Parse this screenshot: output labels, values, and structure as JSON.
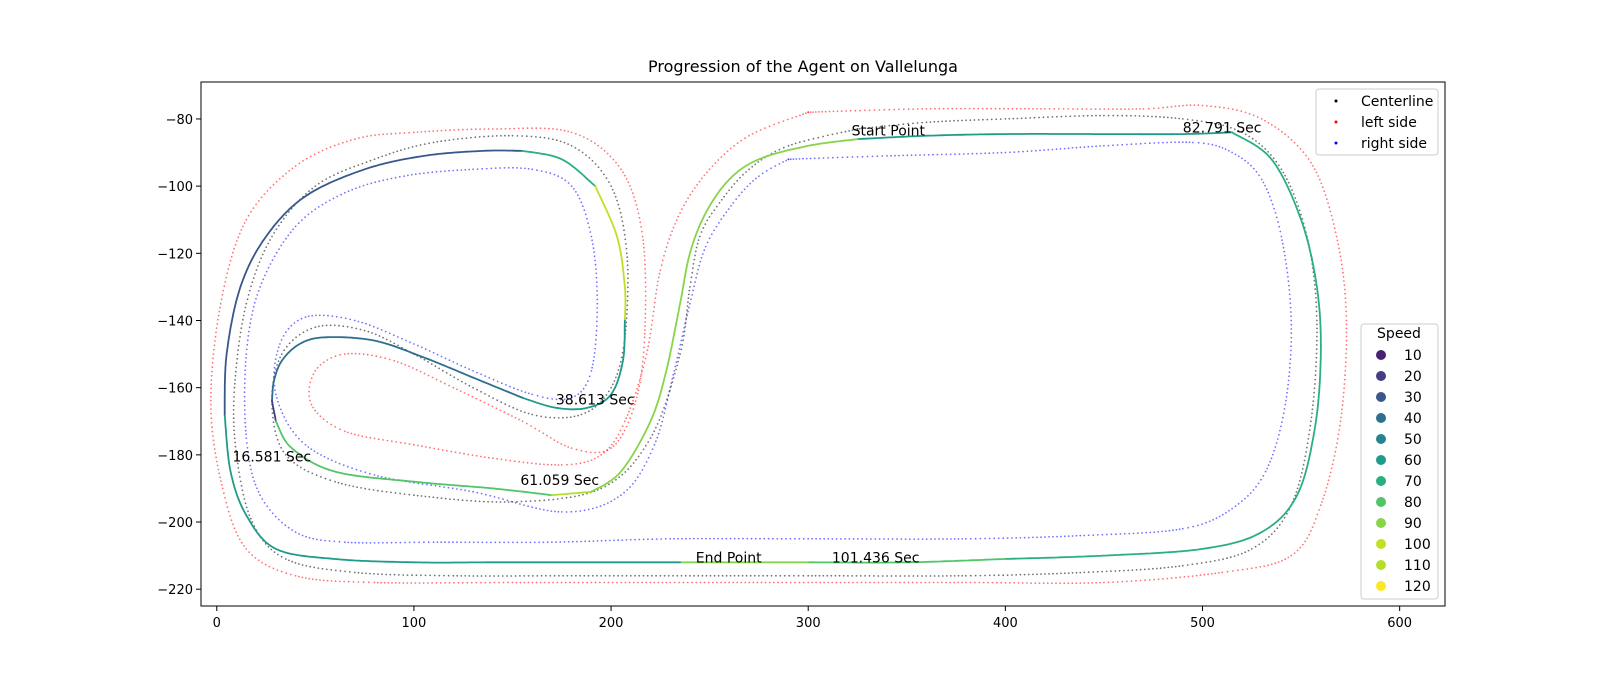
{
  "chart_data": {
    "type": "scatter",
    "title": "Progression of the Agent on Vallelunga",
    "xlabel": "",
    "ylabel": "",
    "xlim": [
      -8,
      623
    ],
    "ylim": [
      -225,
      -69
    ],
    "x_ticks": [
      0,
      100,
      200,
      300,
      400,
      500,
      600
    ],
    "y_ticks": [
      -80,
      -100,
      -120,
      -140,
      -160,
      -180,
      -200,
      -220
    ],
    "grid": false,
    "legend_position": "upper right",
    "legend": [
      {
        "label": "Centerline",
        "color": "#000000"
      },
      {
        "label": "left side",
        "color": "#ff0000"
      },
      {
        "label": "right side",
        "color": "#0000ff"
      }
    ],
    "speed_legend": {
      "title": "Speed",
      "position": "lower right",
      "entries": [
        {
          "label": "10",
          "color": "#482173"
        },
        {
          "label": "20",
          "color": "#433e85"
        },
        {
          "label": "30",
          "color": "#38588c"
        },
        {
          "label": "40",
          "color": "#2d708e"
        },
        {
          "label": "50",
          "color": "#25858e"
        },
        {
          "label": "60",
          "color": "#1e9b8a"
        },
        {
          "label": "70",
          "color": "#2ab07f"
        },
        {
          "label": "80",
          "color": "#52c569"
        },
        {
          "label": "90",
          "color": "#86d549"
        },
        {
          "label": "100",
          "color": "#c2df23"
        },
        {
          "label": "110",
          "color": "#b5de2b"
        },
        {
          "label": "120",
          "color": "#fde725"
        }
      ]
    },
    "series": [
      {
        "name": "Centerline",
        "color": "#000000",
        "points": [
          [
            325,
            -83
          ],
          [
            360,
            -81
          ],
          [
            400,
            -80
          ],
          [
            450,
            -79
          ],
          [
            490,
            -80
          ],
          [
            520,
            -84
          ],
          [
            540,
            -95
          ],
          [
            553,
            -115
          ],
          [
            558,
            -140
          ],
          [
            555,
            -170
          ],
          [
            545,
            -195
          ],
          [
            525,
            -208
          ],
          [
            490,
            -213
          ],
          [
            440,
            -215
          ],
          [
            380,
            -216
          ],
          [
            300,
            -216
          ],
          [
            240,
            -216
          ],
          [
            180,
            -216
          ],
          [
            120,
            -216
          ],
          [
            70,
            -215
          ],
          [
            35,
            -211
          ],
          [
            18,
            -200
          ],
          [
            10,
            -180
          ],
          [
            9,
            -160
          ],
          [
            15,
            -135
          ],
          [
            28,
            -115
          ],
          [
            50,
            -100
          ],
          [
            80,
            -92
          ],
          [
            110,
            -87
          ],
          [
            150,
            -85
          ],
          [
            180,
            -88
          ],
          [
            200,
            -100
          ],
          [
            208,
            -120
          ],
          [
            207,
            -145
          ],
          [
            200,
            -160
          ],
          [
            185,
            -168
          ],
          [
            160,
            -168
          ],
          [
            130,
            -160
          ],
          [
            100,
            -150
          ],
          [
            75,
            -143
          ],
          [
            50,
            -142
          ],
          [
            33,
            -150
          ],
          [
            28,
            -165
          ],
          [
            35,
            -180
          ],
          [
            60,
            -188
          ],
          [
            100,
            -192
          ],
          [
            150,
            -194
          ],
          [
            195,
            -190
          ],
          [
            220,
            -175
          ],
          [
            235,
            -150
          ],
          [
            240,
            -130
          ],
          [
            245,
            -115
          ],
          [
            255,
            -105
          ],
          [
            270,
            -95
          ],
          [
            290,
            -88
          ],
          [
            325,
            -83
          ]
        ]
      },
      {
        "name": "left side",
        "color": "#ff0000",
        "points": [
          [
            300,
            -78
          ],
          [
            360,
            -77
          ],
          [
            420,
            -77
          ],
          [
            470,
            -77
          ],
          [
            500,
            -76
          ],
          [
            530,
            -80
          ],
          [
            555,
            -93
          ],
          [
            568,
            -115
          ],
          [
            573,
            -140
          ],
          [
            570,
            -170
          ],
          [
            560,
            -195
          ],
          [
            545,
            -210
          ],
          [
            510,
            -215
          ],
          [
            450,
            -218
          ],
          [
            380,
            -218
          ],
          [
            300,
            -218
          ],
          [
            230,
            -218
          ],
          [
            150,
            -218
          ],
          [
            80,
            -218
          ],
          [
            40,
            -216
          ],
          [
            15,
            -208
          ],
          [
            3,
            -190
          ],
          [
            -3,
            -165
          ],
          [
            2,
            -135
          ],
          [
            15,
            -110
          ],
          [
            40,
            -94
          ],
          [
            70,
            -86
          ],
          [
            100,
            -84
          ],
          [
            140,
            -83
          ],
          [
            180,
            -84
          ],
          [
            205,
            -95
          ],
          [
            216,
            -115
          ],
          [
            217,
            -145
          ],
          [
            212,
            -165
          ],
          [
            200,
            -178
          ],
          [
            180,
            -178
          ],
          [
            155,
            -170
          ],
          [
            120,
            -160
          ],
          [
            90,
            -152
          ],
          [
            65,
            -150
          ],
          [
            50,
            -155
          ],
          [
            48,
            -165
          ],
          [
            65,
            -173
          ],
          [
            100,
            -177
          ],
          [
            140,
            -181
          ],
          [
            175,
            -183
          ],
          [
            195,
            -180
          ],
          [
            207,
            -170
          ],
          [
            218,
            -150
          ],
          [
            225,
            -125
          ],
          [
            235,
            -108
          ],
          [
            250,
            -95
          ],
          [
            270,
            -85
          ],
          [
            300,
            -78
          ]
        ]
      },
      {
        "name": "right side",
        "color": "#0000ff",
        "points": [
          [
            290,
            -92
          ],
          [
            340,
            -91
          ],
          [
            400,
            -90
          ],
          [
            450,
            -88
          ],
          [
            495,
            -87
          ],
          [
            515,
            -90
          ],
          [
            530,
            -98
          ],
          [
            540,
            -115
          ],
          [
            545,
            -140
          ],
          [
            542,
            -165
          ],
          [
            532,
            -185
          ],
          [
            515,
            -196
          ],
          [
            490,
            -202
          ],
          [
            440,
            -204
          ],
          [
            380,
            -205
          ],
          [
            300,
            -205
          ],
          [
            230,
            -205
          ],
          [
            170,
            -206
          ],
          [
            110,
            -206
          ],
          [
            65,
            -206
          ],
          [
            40,
            -203
          ],
          [
            22,
            -192
          ],
          [
            15,
            -175
          ],
          [
            15,
            -150
          ],
          [
            22,
            -130
          ],
          [
            40,
            -112
          ],
          [
            65,
            -102
          ],
          [
            95,
            -97
          ],
          [
            130,
            -95
          ],
          [
            160,
            -95
          ],
          [
            180,
            -100
          ],
          [
            190,
            -115
          ],
          [
            193,
            -135
          ],
          [
            190,
            -155
          ],
          [
            180,
            -163
          ],
          [
            160,
            -162
          ],
          [
            130,
            -155
          ],
          [
            100,
            -147
          ],
          [
            70,
            -140
          ],
          [
            45,
            -139
          ],
          [
            32,
            -147
          ],
          [
            30,
            -162
          ],
          [
            45,
            -177
          ],
          [
            80,
            -186
          ],
          [
            130,
            -191
          ],
          [
            175,
            -197
          ],
          [
            205,
            -192
          ],
          [
            222,
            -177
          ],
          [
            232,
            -155
          ],
          [
            240,
            -135
          ],
          [
            248,
            -118
          ],
          [
            262,
            -105
          ],
          [
            275,
            -97
          ],
          [
            290,
            -92
          ]
        ]
      }
    ],
    "agent_path_segments": [
      {
        "speed": 60,
        "points": [
          [
            325,
            -86
          ],
          [
            360,
            -85
          ],
          [
            400,
            -84.5
          ],
          [
            450,
            -84.5
          ],
          [
            490,
            -84.5
          ],
          [
            515,
            -84
          ]
        ]
      },
      {
        "speed": 70,
        "points": [
          [
            515,
            -84
          ],
          [
            535,
            -92
          ],
          [
            550,
            -110
          ],
          [
            558,
            -130
          ],
          [
            560,
            -150
          ],
          [
            557,
            -172
          ],
          [
            548,
            -192
          ],
          [
            530,
            -203
          ],
          [
            500,
            -208
          ],
          [
            450,
            -210
          ],
          [
            400,
            -211
          ]
        ]
      },
      {
        "speed": 80,
        "points": [
          [
            400,
            -211
          ],
          [
            350,
            -212
          ],
          [
            300,
            -212
          ]
        ]
      },
      {
        "speed": 90,
        "points": [
          [
            300,
            -212
          ],
          [
            250,
            -212
          ],
          [
            235,
            -212
          ]
        ]
      },
      {
        "speed": 60,
        "points": [
          [
            235,
            -212
          ],
          [
            180,
            -212
          ],
          [
            140,
            -212
          ],
          [
            100,
            -212
          ],
          [
            60,
            -211
          ],
          [
            30,
            -208
          ],
          [
            15,
            -198
          ],
          [
            7,
            -185
          ],
          [
            4,
            -168
          ]
        ]
      },
      {
        "speed": 30,
        "points": [
          [
            4,
            -168
          ],
          [
            5,
            -150
          ],
          [
            12,
            -130
          ],
          [
            25,
            -115
          ],
          [
            45,
            -103
          ],
          [
            75,
            -95
          ],
          [
            105,
            -91
          ],
          [
            135,
            -89.5
          ],
          [
            155,
            -89.5
          ]
        ]
      },
      {
        "speed": 70,
        "points": [
          [
            155,
            -89.5
          ],
          [
            175,
            -92
          ],
          [
            192,
            -100
          ]
        ]
      },
      {
        "speed": 100,
        "points": [
          [
            192,
            -100
          ],
          [
            203,
            -115
          ],
          [
            207,
            -130
          ],
          [
            207,
            -140
          ]
        ]
      },
      {
        "speed": 60,
        "points": [
          [
            207,
            -140
          ],
          [
            206,
            -152
          ],
          [
            200,
            -162
          ],
          [
            188,
            -166
          ],
          [
            172,
            -166
          ],
          [
            155,
            -163
          ]
        ]
      },
      {
        "speed": 40,
        "points": [
          [
            155,
            -163
          ],
          [
            130,
            -157
          ],
          [
            105,
            -151
          ],
          [
            80,
            -146
          ],
          [
            55,
            -145
          ],
          [
            42,
            -147
          ],
          [
            33,
            -152
          ],
          [
            29,
            -158
          ],
          [
            28,
            -164
          ]
        ]
      },
      {
        "speed": 20,
        "points": [
          [
            28,
            -164
          ],
          [
            30,
            -170
          ]
        ]
      },
      {
        "speed": 80,
        "points": [
          [
            30,
            -170
          ],
          [
            38,
            -178
          ],
          [
            60,
            -185
          ],
          [
            100,
            -188
          ],
          [
            140,
            -190
          ],
          [
            170,
            -192
          ]
        ]
      },
      {
        "speed": 110,
        "points": [
          [
            170,
            -192
          ],
          [
            190,
            -191
          ]
        ]
      },
      {
        "speed": 90,
        "points": [
          [
            190,
            -191
          ],
          [
            205,
            -185
          ],
          [
            220,
            -170
          ],
          [
            228,
            -155
          ],
          [
            235,
            -135
          ],
          [
            240,
            -120
          ],
          [
            248,
            -108
          ],
          [
            260,
            -98
          ],
          [
            275,
            -92
          ],
          [
            300,
            -88
          ],
          [
            325,
            -86
          ]
        ]
      }
    ],
    "annotations": [
      {
        "text": "Start Point",
        "x": 322,
        "y": -85
      },
      {
        "text": "82.791 Sec",
        "x": 490,
        "y": -84
      },
      {
        "text": "38.613 Sec",
        "x": 172,
        "y": -165
      },
      {
        "text": "16.581 Sec",
        "x": 8,
        "y": -182
      },
      {
        "text": "61.059 Sec",
        "x": 154,
        "y": -189
      },
      {
        "text": "End Point",
        "x": 243,
        "y": -212
      },
      {
        "text": "101.436 Sec",
        "x": 312,
        "y": -212
      }
    ]
  }
}
